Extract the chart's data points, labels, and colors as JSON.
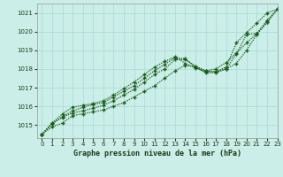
{
  "title": "Graphe pression niveau de la mer (hPa)",
  "background_color": "#cceee8",
  "grid_color": "#aadddd",
  "line_color": "#1a5c1a",
  "marker_color": "#1a5c1a",
  "xlim": [
    -0.5,
    23
  ],
  "ylim": [
    1014.3,
    1021.5
  ],
  "yticks": [
    1015,
    1016,
    1017,
    1018,
    1019,
    1020,
    1021
  ],
  "xticks": [
    0,
    1,
    2,
    3,
    4,
    5,
    6,
    7,
    8,
    9,
    10,
    11,
    12,
    13,
    14,
    15,
    16,
    17,
    18,
    19,
    20,
    21,
    22,
    23
  ],
  "series": [
    [
      1014.5,
      1014.9,
      1015.1,
      1015.5,
      1015.6,
      1015.7,
      1015.8,
      1016.0,
      1016.2,
      1016.5,
      1016.8,
      1017.1,
      1017.5,
      1017.9,
      1018.2,
      1018.1,
      1017.9,
      1017.85,
      1018.0,
      1018.3,
      1019.0,
      1019.85,
      1020.5,
      1021.2
    ],
    [
      1014.5,
      1015.1,
      1015.4,
      1015.65,
      1015.75,
      1015.9,
      1016.05,
      1016.3,
      1016.6,
      1016.9,
      1017.3,
      1017.7,
      1018.0,
      1018.5,
      1018.5,
      1018.15,
      1017.9,
      1018.0,
      1018.35,
      1018.85,
      1019.4,
      1019.9,
      1020.5,
      1021.2
    ],
    [
      1014.5,
      1015.05,
      1015.45,
      1015.75,
      1015.95,
      1016.1,
      1016.2,
      1016.5,
      1016.8,
      1017.1,
      1017.5,
      1017.9,
      1018.25,
      1018.6,
      1018.55,
      1018.1,
      1017.8,
      1017.8,
      1018.0,
      1018.8,
      1019.85,
      1019.9,
      1020.6,
      1021.2
    ],
    [
      1014.5,
      1015.1,
      1015.6,
      1015.95,
      1016.05,
      1016.15,
      1016.3,
      1016.6,
      1016.95,
      1017.3,
      1017.7,
      1018.1,
      1018.4,
      1018.65,
      1018.3,
      1018.05,
      1017.85,
      1017.85,
      1018.1,
      1019.4,
      1019.95,
      1020.45,
      1021.0,
      1021.2
    ]
  ]
}
